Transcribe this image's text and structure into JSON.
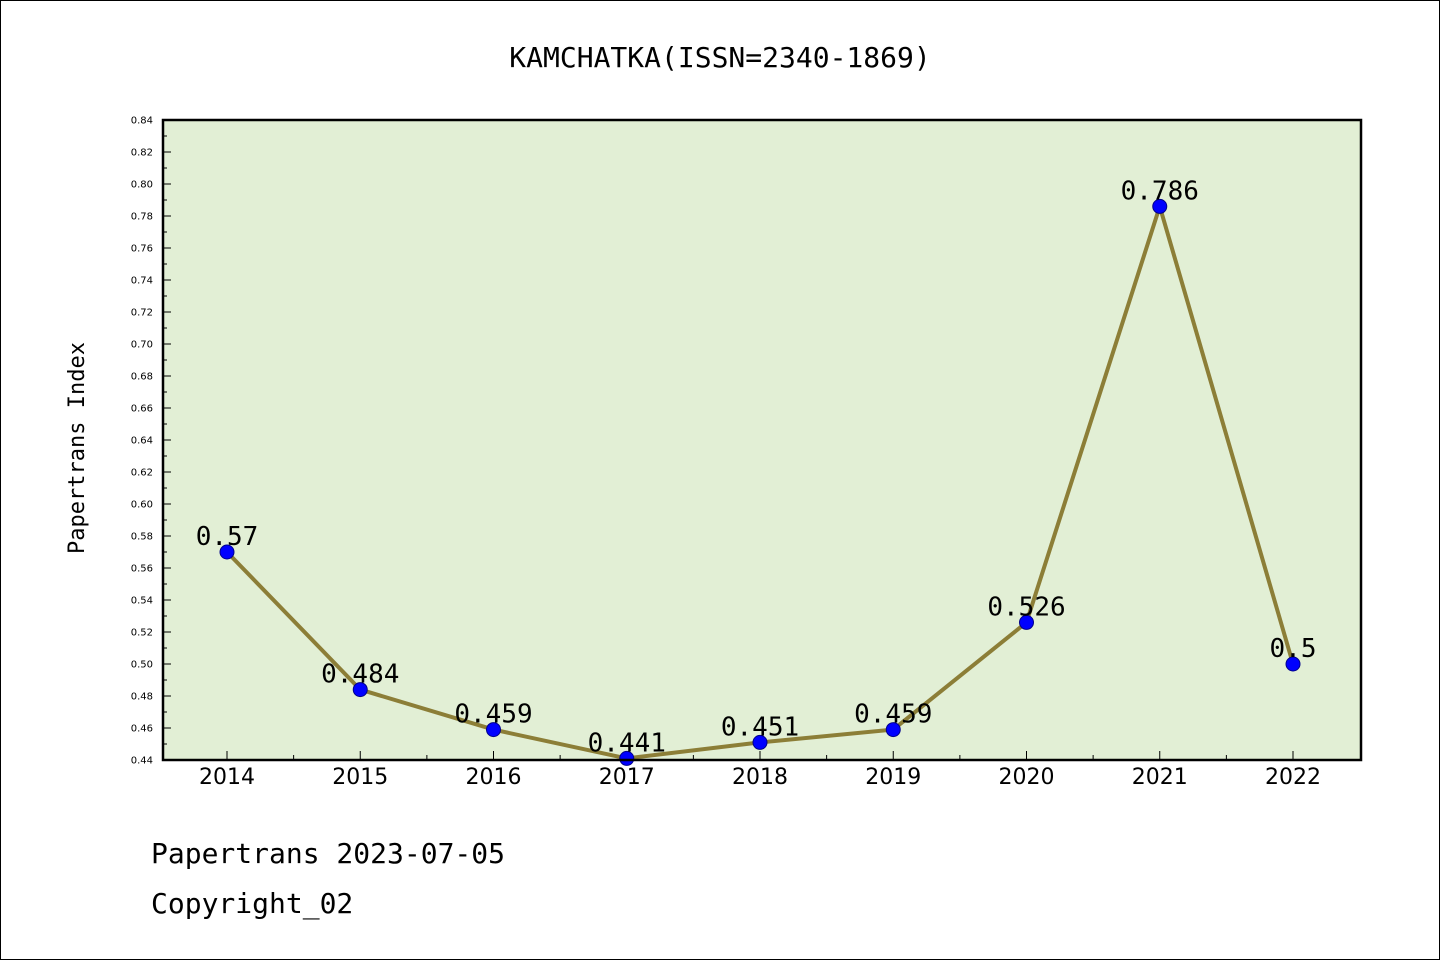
{
  "chart_data": {
    "type": "line",
    "title": "KAMCHATKA(ISSN=2340-1869)",
    "xlabel": "",
    "ylabel": "Papertrans Index",
    "categories": [
      "2014",
      "2015",
      "2016",
      "2017",
      "2018",
      "2019",
      "2020",
      "2021",
      "2022"
    ],
    "series": [
      {
        "name": "Papertrans Index",
        "values": [
          0.57,
          0.484,
          0.459,
          0.441,
          0.451,
          0.459,
          0.526,
          0.786,
          0.5
        ],
        "labels": [
          "0.57",
          "0.484",
          "0.459",
          "0.441",
          "0.451",
          "0.459",
          "0.526",
          "0.786",
          "0.5"
        ]
      }
    ],
    "ylim": [
      0.44,
      0.84
    ],
    "ytick_step": 0.02,
    "ytick_labels": [
      "0.44",
      "0.46",
      "0.48",
      "0.50",
      "0.52",
      "0.54",
      "0.56",
      "0.58",
      "0.60",
      "0.62",
      "0.64",
      "0.66",
      "0.68",
      "0.70",
      "0.72",
      "0.74",
      "0.76",
      "0.78",
      "0.80",
      "0.82",
      "0.84"
    ],
    "grid": false,
    "legend": "none"
  },
  "colors": {
    "plot_background": "#e2efd5",
    "line": "#8c7e37",
    "marker_fill": "#0000ff",
    "marker_edge": "#00008b"
  },
  "footer": {
    "date_line": "Papertrans 2023-07-05",
    "copyright_line": "Copyright_02"
  }
}
